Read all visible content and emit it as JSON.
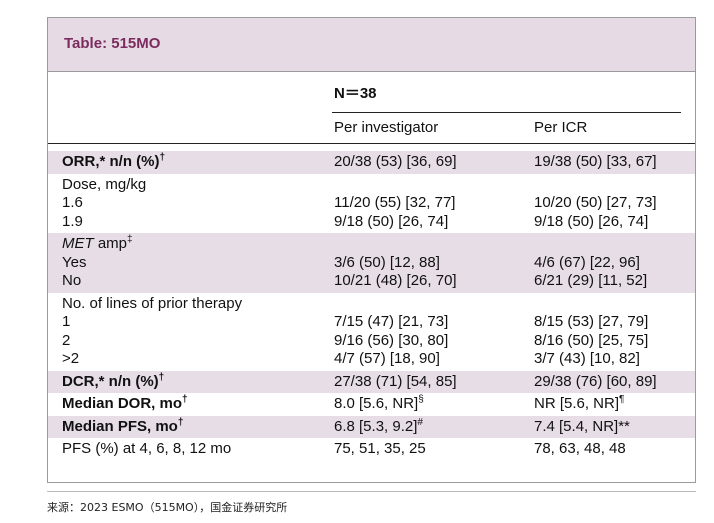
{
  "table": {
    "title": "Table: 515MO",
    "n_label": "N＝38",
    "columns": [
      "Per investigator",
      "Per ICR"
    ],
    "rows": [
      {
        "shade": true,
        "bold": true,
        "lines": [
          [
            {
              "text": "ORR,* n/n (%)",
              "sup": "†"
            },
            "20/38 (53) [36, 69]",
            "19/38 (50) [33, 67]"
          ]
        ]
      },
      {
        "shade": false,
        "bold": false,
        "lines": [
          [
            "Dose, mg/kg"
          ],
          [
            "1.6",
            "11/20 (55) [32, 77]",
            "10/20 (50) [27, 73]"
          ],
          [
            "1.9",
            "9/18 (50) [26, 74]",
            "9/18 (50) [26, 74]"
          ]
        ]
      },
      {
        "shade": true,
        "bold": false,
        "lines": [
          [
            {
              "italic": "MET",
              "text": " amp",
              "sup": "‡"
            }
          ],
          [
            "Yes",
            "3/6 (50) [12, 88]",
            "4/6 (67) [22, 96]"
          ],
          [
            "No",
            "10/21 (48) [26, 70]",
            "6/21 (29) [11, 52]"
          ]
        ]
      },
      {
        "shade": false,
        "bold": false,
        "lines": [
          [
            "No. of lines of prior therapy"
          ],
          [
            "1",
            "7/15 (47) [21, 73]",
            "8/15 (53) [27, 79]"
          ],
          [
            "2",
            "9/16 (56) [30, 80]",
            "8/16 (50) [25, 75]"
          ],
          [
            ">2",
            "4/7 (57) [18, 90]",
            "3/7 (43) [10, 82]"
          ]
        ]
      },
      {
        "shade": true,
        "bold": true,
        "lines": [
          [
            {
              "text": "DCR,* n/n (%)",
              "sup": "†"
            },
            "27/38 (71) [54, 85]",
            "29/38 (76) [60, 89]"
          ]
        ]
      },
      {
        "shade": false,
        "bold": true,
        "lines": [
          [
            {
              "text": "Median DOR, mo",
              "sup": "†"
            },
            {
              "text": "8.0 [5.6, NR]",
              "sup": "§"
            },
            {
              "text": "NR [5.6, NR]",
              "sup": "¶"
            }
          ]
        ]
      },
      {
        "shade": true,
        "bold": true,
        "lines": [
          [
            {
              "text": "Median PFS, mo",
              "sup": "†"
            },
            {
              "text": "6.8 [5.3, 9.2]",
              "sup": "#"
            },
            "7.4 [5.4, NR]**"
          ]
        ]
      },
      {
        "shade": false,
        "bold": false,
        "lines": [
          [
            "PFS (%) at 4, 6, 8, 12 mo",
            "75, 51, 35, 25",
            "78, 63, 48, 48"
          ]
        ]
      }
    ]
  },
  "source": "来源：2023 ESMO（515MO），国金证券研究所"
}
